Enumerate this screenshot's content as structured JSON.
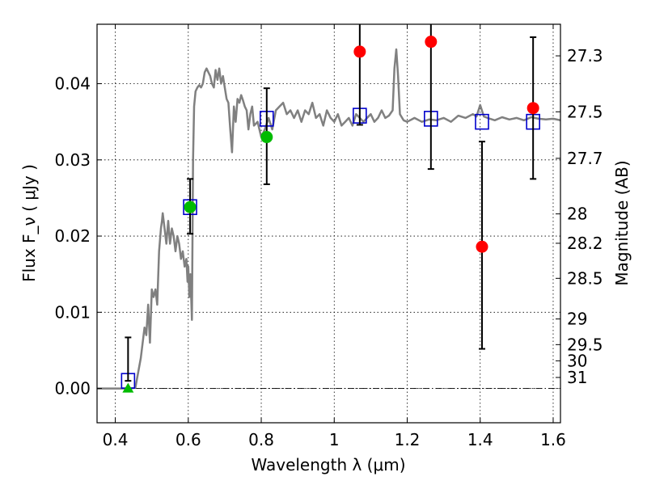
{
  "chart_data": {
    "type": "scatter",
    "xlabel": "Wavelength  λ (μm)",
    "ylabel": "Flux  F_ν  ( μJy )",
    "ylabel_right": "Magnitude (AB)",
    "xlim": [
      0.35,
      1.62
    ],
    "ylim": [
      -0.0045,
      0.0478
    ],
    "x_ticks": [
      "0.4",
      "0.6",
      "0.8",
      "1",
      "1.2",
      "1.4",
      "1.6"
    ],
    "x_tick_values": [
      0.4,
      0.6,
      0.8,
      1.0,
      1.2,
      1.4,
      1.6
    ],
    "y_ticks": [
      "0.00",
      "0.01",
      "0.02",
      "0.03",
      "0.04"
    ],
    "y_tick_values": [
      0.0,
      0.01,
      0.02,
      0.03,
      0.04
    ],
    "right_ticks": [
      "27.3",
      "27.5",
      "27.7",
      "28",
      "28.2",
      "28.5",
      "29",
      "29.5",
      "30",
      "31"
    ],
    "right_tick_values": [
      27.3,
      27.5,
      27.7,
      28,
      28.2,
      28.5,
      29,
      29.5,
      30,
      31
    ],
    "grid": true,
    "colors": {
      "model": "#808080",
      "model_points": "#0000cc",
      "red_points": "#ff0000",
      "green_points": "#00bb00",
      "green_limit": "#00bb00"
    },
    "series": [
      {
        "kind": "line",
        "x": [
          0.35,
          0.44,
          0.455,
          0.47,
          0.48,
          0.485,
          0.49,
          0.495,
          0.5,
          0.505,
          0.51,
          0.515,
          0.52,
          0.525,
          0.528,
          0.53,
          0.535,
          0.54,
          0.545,
          0.55,
          0.555,
          0.56,
          0.565,
          0.57,
          0.575,
          0.58,
          0.585,
          0.59,
          0.595,
          0.598,
          0.6,
          0.603,
          0.606,
          0.61,
          0.613,
          0.616,
          0.62,
          0.625,
          0.63,
          0.635,
          0.64,
          0.645,
          0.65,
          0.655,
          0.66,
          0.665,
          0.67,
          0.675,
          0.68,
          0.685,
          0.69,
          0.695,
          0.7,
          0.705,
          0.71,
          0.715,
          0.72,
          0.725,
          0.73,
          0.735,
          0.74,
          0.745,
          0.75,
          0.755,
          0.76,
          0.765,
          0.77,
          0.775,
          0.78,
          0.79,
          0.8,
          0.81,
          0.82,
          0.83,
          0.84,
          0.85,
          0.86,
          0.87,
          0.88,
          0.89,
          0.9,
          0.91,
          0.92,
          0.93,
          0.94,
          0.95,
          0.96,
          0.97,
          0.98,
          0.99,
          1.0,
          1.01,
          1.02,
          1.03,
          1.04,
          1.05,
          1.06,
          1.07,
          1.08,
          1.09,
          1.1,
          1.11,
          1.12,
          1.13,
          1.14,
          1.15,
          1.16,
          1.165,
          1.17,
          1.175,
          1.18,
          1.19,
          1.2,
          1.22,
          1.24,
          1.26,
          1.28,
          1.3,
          1.32,
          1.34,
          1.36,
          1.38,
          1.39,
          1.4,
          1.41,
          1.42,
          1.44,
          1.46,
          1.48,
          1.5,
          1.52,
          1.54,
          1.56,
          1.58,
          1.6,
          1.62
        ],
        "y": [
          0.0,
          0.0,
          0.0001,
          0.004,
          0.008,
          0.007,
          0.011,
          0.006,
          0.013,
          0.012,
          0.013,
          0.011,
          0.018,
          0.021,
          0.022,
          0.023,
          0.021,
          0.019,
          0.022,
          0.019,
          0.021,
          0.02,
          0.018,
          0.02,
          0.019,
          0.017,
          0.018,
          0.016,
          0.017,
          0.014,
          0.016,
          0.012,
          0.015,
          0.009,
          0.03,
          0.037,
          0.039,
          0.0395,
          0.0398,
          0.0395,
          0.04,
          0.0415,
          0.042,
          0.0415,
          0.041,
          0.04,
          0.0395,
          0.0418,
          0.0405,
          0.042,
          0.04,
          0.041,
          0.0395,
          0.038,
          0.0375,
          0.034,
          0.031,
          0.037,
          0.035,
          0.038,
          0.0375,
          0.0385,
          0.0378,
          0.037,
          0.0365,
          0.034,
          0.036,
          0.037,
          0.0345,
          0.035,
          0.033,
          0.034,
          0.0355,
          0.034,
          0.0365,
          0.037,
          0.0375,
          0.036,
          0.0365,
          0.0355,
          0.0365,
          0.035,
          0.0365,
          0.036,
          0.0375,
          0.0355,
          0.036,
          0.0345,
          0.0365,
          0.0355,
          0.035,
          0.036,
          0.0345,
          0.035,
          0.0355,
          0.0345,
          0.036,
          0.0355,
          0.035,
          0.0355,
          0.036,
          0.035,
          0.0355,
          0.0365,
          0.0355,
          0.0358,
          0.0365,
          0.042,
          0.0445,
          0.041,
          0.036,
          0.0352,
          0.035,
          0.0355,
          0.035,
          0.0353,
          0.0352,
          0.0355,
          0.035,
          0.0358,
          0.0355,
          0.036,
          0.0357,
          0.0372,
          0.0357,
          0.0355,
          0.0352,
          0.0356,
          0.0353,
          0.0355,
          0.0352,
          0.0356,
          0.0354,
          0.0353,
          0.0354,
          0.0352
        ]
      },
      {
        "kind": "open-square",
        "x": [
          0.435,
          0.605,
          0.815,
          1.07,
          1.265,
          1.405,
          1.545
        ],
        "y": [
          0.001,
          0.0238,
          0.0354,
          0.0358,
          0.0354,
          0.035,
          0.035
        ]
      },
      {
        "kind": "errorbar",
        "x": [
          0.435,
          0.605,
          0.815,
          1.07,
          1.265,
          1.405,
          1.545
        ],
        "y": [
          0.001,
          0.0238,
          0.033,
          0.0442,
          0.0455,
          0.0186,
          0.0368
        ],
        "err_low": [
          0.0,
          0.0035,
          0.0062,
          0.0096,
          0.0167,
          0.0134,
          0.0093
        ],
        "err_high": [
          0.0057,
          0.0037,
          0.0064,
          0.0096,
          0.0167,
          0.0138,
          0.0093
        ]
      },
      {
        "kind": "filled-circle-red",
        "x": [
          1.07,
          1.265,
          1.405,
          1.545
        ],
        "y": [
          0.0442,
          0.0455,
          0.0186,
          0.0368
        ]
      },
      {
        "kind": "filled-circle-green",
        "x": [
          0.605,
          0.815
        ],
        "y": [
          0.0238,
          0.033
        ]
      },
      {
        "kind": "triangle-green",
        "x": [
          0.435
        ],
        "y": [
          0.0
        ]
      }
    ]
  }
}
